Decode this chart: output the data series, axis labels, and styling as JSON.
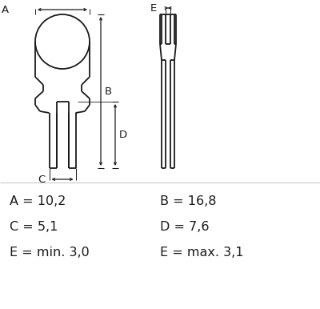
{
  "bg_color": "#ffffff",
  "line_color": "#1a1a1a",
  "fig_width": 4.0,
  "fig_height": 3.86,
  "dpi": 100,
  "labels": {
    "A": "A = 10,2",
    "B": "B = 16,8",
    "C": "C = 5,1",
    "D": "D = 7,6",
    "E_min": "E = min. 3,0",
    "E_max": "E = max. 3,1"
  },
  "font_size": 11.5
}
